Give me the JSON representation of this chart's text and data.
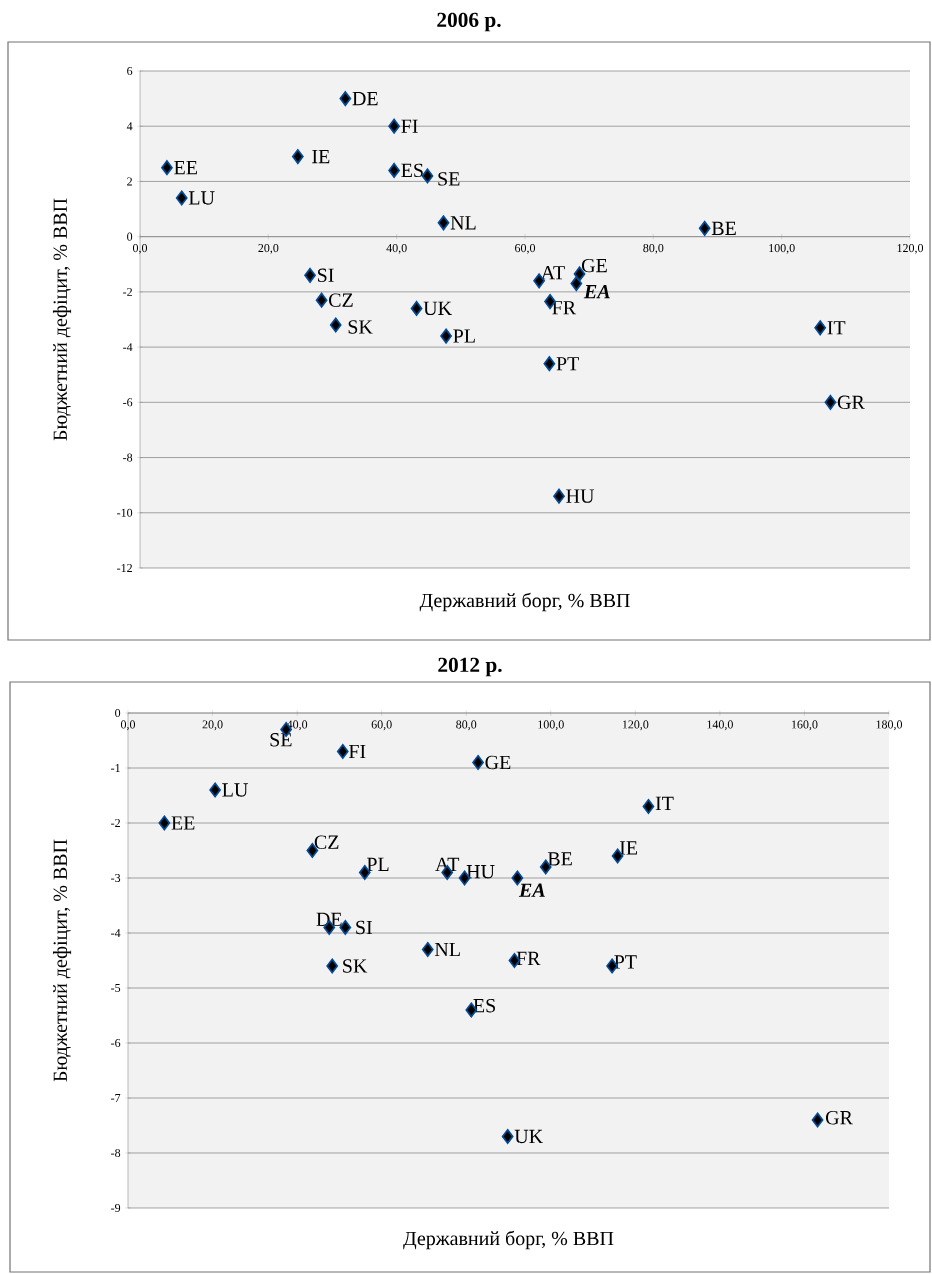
{
  "chart_data": [
    {
      "type": "scatter",
      "title": "2006 р.",
      "xlabel": "Державний борг, % ВВП",
      "ylabel": "Бюджетний дефіцит, % ВВП",
      "color": "#000000",
      "marker": "diamond",
      "grid": "y",
      "x": [
        4.2,
        6.5,
        24.6,
        32.0,
        39.6,
        39.6,
        44.8,
        47.3,
        88.0,
        26.5,
        28.3,
        30.5,
        43.1,
        47.7,
        62.2,
        68.5,
        68.0,
        63.9,
        63.8,
        65.3,
        106.0,
        107.6
      ],
      "values": [
        2.5,
        1.4,
        2.9,
        5.0,
        4.0,
        2.4,
        2.2,
        0.5,
        0.3,
        -1.4,
        -2.3,
        -3.2,
        -2.6,
        -3.6,
        -1.6,
        -1.35,
        -1.7,
        -2.35,
        -4.6,
        -9.4,
        -3.3,
        -6.0
      ],
      "xlim": [
        0,
        120
      ],
      "ylim": [
        -12,
        6
      ],
      "xticks": [
        {
          "value": 0,
          "label": "0,0"
        },
        {
          "value": 20,
          "label": "20,0"
        },
        {
          "value": 40,
          "label": "40,0"
        },
        {
          "value": 60,
          "label": "60,0"
        },
        {
          "value": 80,
          "label": "80,0"
        },
        {
          "value": 100,
          "label": "100,0"
        },
        {
          "value": 120,
          "label": "120,0"
        }
      ],
      "yticks": [
        -12,
        -10,
        -8,
        -6,
        -4,
        -2,
        0,
        2,
        4,
        6
      ],
      "annotations": [
        {
          "text": "EE",
          "x": 4.2,
          "y": 2.5
        },
        {
          "text": "LU",
          "x": 6.5,
          "y": 1.4
        },
        {
          "text": "IE",
          "x": 24.6,
          "y": 2.9
        },
        {
          "text": "DE",
          "x": 32.0,
          "y": 5.0
        },
        {
          "text": "FI",
          "x": 39.6,
          "y": 4.0
        },
        {
          "text": "ES",
          "x": 39.6,
          "y": 2.4
        },
        {
          "text": "SE",
          "x": 44.8,
          "y": 2.2
        },
        {
          "text": "NL",
          "x": 47.3,
          "y": 0.5
        },
        {
          "text": "BE",
          "x": 88.0,
          "y": 0.3
        },
        {
          "text": "SI",
          "x": 26.5,
          "y": -1.4
        },
        {
          "text": "CZ",
          "x": 28.3,
          "y": -2.3
        },
        {
          "text": "SK",
          "x": 30.5,
          "y": -3.2
        },
        {
          "text": "UK",
          "x": 43.1,
          "y": -2.6
        },
        {
          "text": "PL",
          "x": 47.7,
          "y": -3.6
        },
        {
          "text": "AT",
          "x": 62.2,
          "y": -1.6
        },
        {
          "text": "GE",
          "x": 68.5,
          "y": -1.35
        },
        {
          "text": "EA",
          "x": 68.0,
          "y": -1.7
        },
        {
          "text": "FR",
          "x": 63.9,
          "y": -2.35
        },
        {
          "text": "PT",
          "x": 63.8,
          "y": -4.6
        },
        {
          "text": "HU",
          "x": 65.3,
          "y": -9.4
        },
        {
          "text": "IT",
          "x": 106.0,
          "y": -3.3
        },
        {
          "text": "GR",
          "x": 107.6,
          "y": -6.0
        }
      ]
    },
    {
      "type": "scatter",
      "title": "2012 р.",
      "xlabel": "Державний борг, % ВВП",
      "ylabel": "Бюджетний дефіцит, % ВВП",
      "color": "#000000",
      "marker": "diamond",
      "grid": "y",
      "x": [
        37.4,
        50.8,
        82.8,
        20.6,
        123.1,
        8.6,
        43.6,
        56.0,
        75.5,
        79.6,
        92.1,
        98.8,
        115.8,
        47.6,
        51.4,
        70.9,
        48.3,
        91.4,
        114.5,
        81.2,
        89.8,
        163.1
      ],
      "values": [
        -0.3,
        -0.7,
        -0.9,
        -1.4,
        -1.7,
        -2.0,
        -2.5,
        -2.9,
        -2.9,
        -3.0,
        -3.0,
        -2.8,
        -2.6,
        -3.9,
        -3.9,
        -4.3,
        -4.6,
        -4.5,
        -4.6,
        -5.4,
        -7.7,
        -7.4
      ],
      "xlim": [
        0,
        180
      ],
      "ylim": [
        -9,
        0
      ],
      "xticks": [
        {
          "value": 0,
          "label": "0,0"
        },
        {
          "value": 20,
          "label": "20,0"
        },
        {
          "value": 40,
          "label": "40,0"
        },
        {
          "value": 60,
          "label": "60,0"
        },
        {
          "value": 80,
          "label": "80,0"
        },
        {
          "value": 100,
          "label": "100,0"
        },
        {
          "value": 120,
          "label": "120,0"
        },
        {
          "value": 140,
          "label": "140,0"
        },
        {
          "value": 160,
          "label": "160,0"
        },
        {
          "value": 180,
          "label": "180,0"
        }
      ],
      "yticks": [
        -9,
        -8,
        -7,
        -6,
        -5,
        -4,
        -3,
        -2,
        -1,
        0
      ],
      "annotations": [
        {
          "text": "SE",
          "x": 37.4,
          "y": -0.3
        },
        {
          "text": "FI",
          "x": 50.8,
          "y": -0.7
        },
        {
          "text": "GE",
          "x": 82.8,
          "y": -0.9
        },
        {
          "text": "LU",
          "x": 20.6,
          "y": -1.4
        },
        {
          "text": "IT",
          "x": 123.1,
          "y": -1.7
        },
        {
          "text": "EE",
          "x": 8.6,
          "y": -2.0
        },
        {
          "text": "CZ",
          "x": 43.6,
          "y": -2.5
        },
        {
          "text": "PL",
          "x": 56.0,
          "y": -2.9
        },
        {
          "text": "AT",
          "x": 75.5,
          "y": -2.9
        },
        {
          "text": "HU",
          "x": 79.6,
          "y": -3.0
        },
        {
          "text": "EA",
          "x": 92.1,
          "y": -3.0
        },
        {
          "text": "BE",
          "x": 98.8,
          "y": -2.8
        },
        {
          "text": "IE",
          "x": 115.8,
          "y": -2.6
        },
        {
          "text": "DE",
          "x": 47.6,
          "y": -3.9
        },
        {
          "text": "SI",
          "x": 51.4,
          "y": -3.9
        },
        {
          "text": "NL",
          "x": 70.9,
          "y": -4.3
        },
        {
          "text": "SK",
          "x": 48.3,
          "y": -4.6
        },
        {
          "text": "FR",
          "x": 91.4,
          "y": -4.5
        },
        {
          "text": "PT",
          "x": 114.5,
          "y": -4.6
        },
        {
          "text": "ES",
          "x": 81.2,
          "y": -5.4
        },
        {
          "text": "UK",
          "x": 89.8,
          "y": -7.7
        },
        {
          "text": "GR",
          "x": 163.1,
          "y": -7.4
        }
      ]
    }
  ]
}
